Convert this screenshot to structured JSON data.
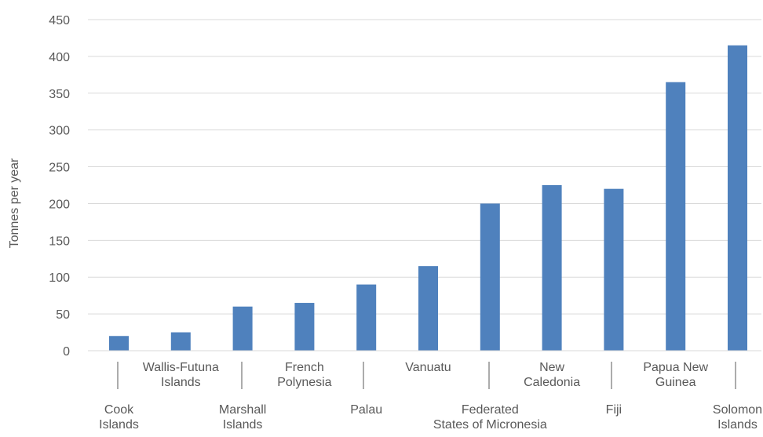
{
  "chart_data": {
    "type": "bar",
    "title": "",
    "xlabel": "",
    "ylabel": "Tonnes per year",
    "ylim": [
      0,
      450
    ],
    "yticks": [
      0,
      50,
      100,
      150,
      200,
      250,
      300,
      350,
      400,
      450
    ],
    "grid": true,
    "legend": "none",
    "bar_color": "#4F81BD",
    "categories": [
      {
        "lines": [
          "Cook",
          "Islands"
        ],
        "value": 20,
        "row": "bottom"
      },
      {
        "lines": [
          "Wallis-Futuna",
          "Islands"
        ],
        "value": 25,
        "row": "top"
      },
      {
        "lines": [
          "Marshall",
          "Islands"
        ],
        "value": 60,
        "row": "bottom"
      },
      {
        "lines": [
          "French",
          "Polynesia"
        ],
        "value": 65,
        "row": "top"
      },
      {
        "lines": [
          "Palau"
        ],
        "value": 90,
        "row": "bottom"
      },
      {
        "lines": [
          "Vanuatu"
        ],
        "value": 115,
        "row": "top"
      },
      {
        "lines": [
          "Federated",
          "States of Micronesia"
        ],
        "value": 200,
        "row": "bottom"
      },
      {
        "lines": [
          "New",
          "Caledonia"
        ],
        "value": 225,
        "row": "top"
      },
      {
        "lines": [
          "Fiji"
        ],
        "value": 220,
        "row": "bottom"
      },
      {
        "lines": [
          "Papua New",
          "Guinea"
        ],
        "value": 365,
        "row": "top"
      },
      {
        "lines": [
          "Solomon",
          "Islands"
        ],
        "value": 415,
        "row": "bottom"
      }
    ]
  }
}
